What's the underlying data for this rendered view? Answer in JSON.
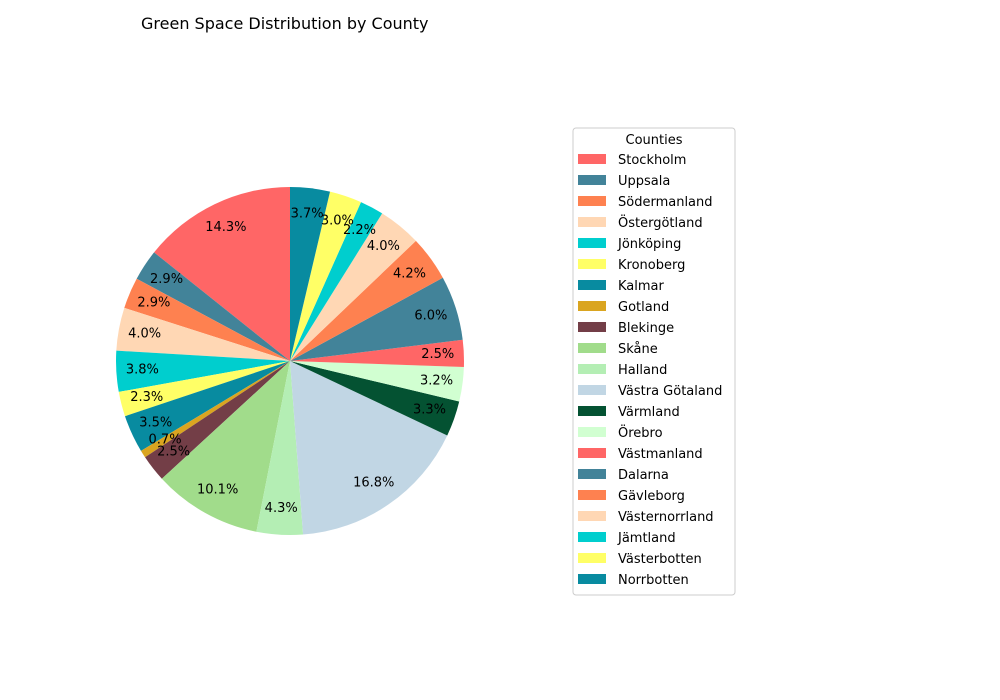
{
  "chart_data": {
    "type": "pie",
    "title": "Green Space Distribution by County",
    "legend": {
      "title": "Counties",
      "placement": "right"
    },
    "slices": [
      {
        "label": "Stockholm",
        "value": 14.3,
        "pct_label": "14.3%",
        "color": "#ff6666"
      },
      {
        "label": "Uppsala",
        "value": 2.9,
        "pct_label": "2.9%",
        "color": "#428399"
      },
      {
        "label": "Södermanland",
        "value": 2.9,
        "pct_label": "2.9%",
        "color": "#fe8150"
      },
      {
        "label": "Östergötland",
        "value": 4.0,
        "pct_label": "4.0%",
        "color": "#ffd7b4"
      },
      {
        "label": "Jönköping",
        "value": 3.8,
        "pct_label": "3.8%",
        "color": "#00cece"
      },
      {
        "label": "Kronoberg",
        "value": 2.3,
        "pct_label": "2.3%",
        "color": "#ffff66"
      },
      {
        "label": "Kalmar",
        "value": 3.5,
        "pct_label": "3.5%",
        "color": "#088ba0"
      },
      {
        "label": "Gotland",
        "value": 0.7,
        "pct_label": "0.7%",
        "color": "#daa520"
      },
      {
        "label": "Blekinge",
        "value": 2.5,
        "pct_label": "2.5%",
        "color": "#733e47"
      },
      {
        "label": "Skåne",
        "value": 10.1,
        "pct_label": "10.1%",
        "color": "#a1dc8b"
      },
      {
        "label": "Halland",
        "value": 4.3,
        "pct_label": "4.3%",
        "color": "#b4eeb4"
      },
      {
        "label": "Västra Götaland",
        "value": 16.8,
        "pct_label": "16.8%",
        "color": "#c1d6e4"
      },
      {
        "label": "Värmland",
        "value": 3.3,
        "pct_label": "3.3%",
        "color": "#045232"
      },
      {
        "label": "Örebro",
        "value": 3.2,
        "pct_label": "3.2%",
        "color": "#d1ffd1"
      },
      {
        "label": "Västmanland",
        "value": 2.5,
        "pct_label": "2.5%",
        "color": "#ff6666"
      },
      {
        "label": "Dalarna",
        "value": 6.0,
        "pct_label": "6.0%",
        "color": "#428399"
      },
      {
        "label": "Gävleborg",
        "value": 4.2,
        "pct_label": "4.2%",
        "color": "#fe8150"
      },
      {
        "label": "Västernorrland",
        "value": 4.0,
        "pct_label": "4.0%",
        "color": "#ffd7b4"
      },
      {
        "label": "Jämtland",
        "value": 2.2,
        "pct_label": "2.2%",
        "color": "#00cece"
      },
      {
        "label": "Västerbotten",
        "value": 3.0,
        "pct_label": "3.0%",
        "color": "#ffff66"
      },
      {
        "label": "Norrbotten",
        "value": 3.7,
        "pct_label": "3.7%",
        "color": "#088ba0"
      }
    ]
  }
}
